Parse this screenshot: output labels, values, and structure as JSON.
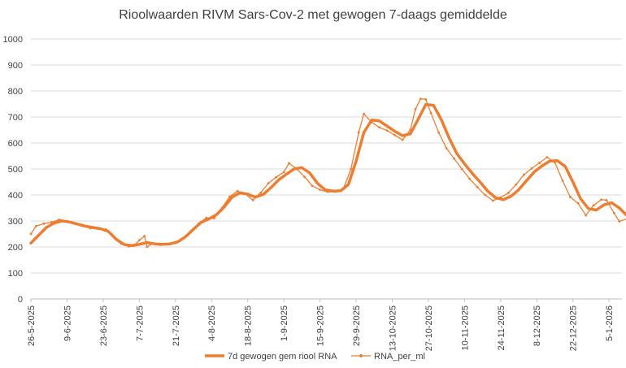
{
  "chart_data": {
    "type": "line",
    "title": "Rioolwaarden RIVM Sars-Cov-2 met gewogen 7-daags gemiddelde",
    "xlabel": "",
    "ylabel": "",
    "x_start": "2025-05-26",
    "x_end": "2026-01-10",
    "ylim": [
      0,
      1000
    ],
    "yticks": [
      0,
      100,
      200,
      300,
      400,
      500,
      600,
      700,
      800,
      900,
      1000
    ],
    "xticks": [
      "26-5-2025",
      "9-6-2025",
      "23-6-2025",
      "7-7-2025",
      "21-7-2025",
      "4-8-2025",
      "18-8-2025",
      "1-9-2025",
      "15-9-2025",
      "29-9-2025",
      "13-10-2025",
      "27-10-2025",
      "10-11-2025",
      "24-11-2025",
      "8-12-2025",
      "22-12-2025",
      "5-1-2026"
    ],
    "grid": "horizontal",
    "legend_position": "bottom",
    "colors": {
      "series": "#ED7D31",
      "grid": "#D9D9D9",
      "axis_text": "#404040"
    },
    "series": [
      {
        "name": "7d gewogen gem riool RNA",
        "style": "thick-line",
        "points": [
          [
            "2025-05-26",
            215
          ],
          [
            "2025-05-29",
            245
          ],
          [
            "2025-06-01",
            275
          ],
          [
            "2025-06-04",
            292
          ],
          [
            "2025-06-07",
            300
          ],
          [
            "2025-06-10",
            296
          ],
          [
            "2025-06-13",
            288
          ],
          [
            "2025-06-16",
            280
          ],
          [
            "2025-06-19",
            275
          ],
          [
            "2025-06-22",
            270
          ],
          [
            "2025-06-25",
            260
          ],
          [
            "2025-06-28",
            230
          ],
          [
            "2025-07-01",
            210
          ],
          [
            "2025-07-04",
            205
          ],
          [
            "2025-07-07",
            210
          ],
          [
            "2025-07-10",
            217
          ],
          [
            "2025-07-13",
            212
          ],
          [
            "2025-07-16",
            210
          ],
          [
            "2025-07-19",
            212
          ],
          [
            "2025-07-22",
            220
          ],
          [
            "2025-07-25",
            240
          ],
          [
            "2025-07-28",
            268
          ],
          [
            "2025-07-31",
            295
          ],
          [
            "2025-08-03",
            308
          ],
          [
            "2025-08-06",
            325
          ],
          [
            "2025-08-09",
            355
          ],
          [
            "2025-08-12",
            392
          ],
          [
            "2025-08-15",
            408
          ],
          [
            "2025-08-18",
            403
          ],
          [
            "2025-08-21",
            392
          ],
          [
            "2025-08-24",
            402
          ],
          [
            "2025-08-27",
            428
          ],
          [
            "2025-08-30",
            458
          ],
          [
            "2025-09-02",
            480
          ],
          [
            "2025-09-05",
            500
          ],
          [
            "2025-09-08",
            505
          ],
          [
            "2025-09-11",
            485
          ],
          [
            "2025-09-14",
            445
          ],
          [
            "2025-09-17",
            420
          ],
          [
            "2025-09-20",
            415
          ],
          [
            "2025-09-23",
            416
          ],
          [
            "2025-09-26",
            440
          ],
          [
            "2025-09-29",
            530
          ],
          [
            "2025-10-02",
            640
          ],
          [
            "2025-10-05",
            688
          ],
          [
            "2025-10-08",
            685
          ],
          [
            "2025-10-11",
            665
          ],
          [
            "2025-10-14",
            645
          ],
          [
            "2025-10-17",
            628
          ],
          [
            "2025-10-20",
            635
          ],
          [
            "2025-10-23",
            690
          ],
          [
            "2025-10-26",
            748
          ],
          [
            "2025-10-29",
            745
          ],
          [
            "2025-11-01",
            690
          ],
          [
            "2025-11-04",
            620
          ],
          [
            "2025-11-07",
            560
          ],
          [
            "2025-11-10",
            520
          ],
          [
            "2025-11-13",
            483
          ],
          [
            "2025-11-16",
            450
          ],
          [
            "2025-11-19",
            415
          ],
          [
            "2025-11-22",
            390
          ],
          [
            "2025-11-25",
            382
          ],
          [
            "2025-11-28",
            395
          ],
          [
            "2025-12-01",
            420
          ],
          [
            "2025-12-04",
            455
          ],
          [
            "2025-12-07",
            488
          ],
          [
            "2025-12-10",
            512
          ],
          [
            "2025-12-13",
            530
          ],
          [
            "2025-12-16",
            532
          ],
          [
            "2025-12-19",
            510
          ],
          [
            "2025-12-22",
            450
          ],
          [
            "2025-12-25",
            385
          ],
          [
            "2025-12-28",
            348
          ],
          [
            "2025-12-31",
            342
          ],
          [
            "2026-01-03",
            362
          ],
          [
            "2026-01-06",
            370
          ],
          [
            "2026-01-09",
            350
          ],
          [
            "2026-01-12",
            320
          ],
          [
            "2026-01-14",
            310
          ]
        ]
      },
      {
        "name": "RNA_per_ml",
        "style": "thin-line-markers",
        "points": [
          [
            "2025-05-26",
            250
          ],
          [
            "2025-05-28",
            280
          ],
          [
            "2025-05-31",
            290
          ],
          [
            "2025-06-03",
            295
          ],
          [
            "2025-06-06",
            305
          ],
          [
            "2025-06-09",
            300
          ],
          [
            "2025-06-12",
            292
          ],
          [
            "2025-06-15",
            285
          ],
          [
            "2025-06-18",
            272
          ],
          [
            "2025-06-21",
            270
          ],
          [
            "2025-06-24",
            268
          ],
          [
            "2025-06-27",
            240
          ],
          [
            "2025-06-30",
            212
          ],
          [
            "2025-07-03",
            202
          ],
          [
            "2025-07-05",
            205
          ],
          [
            "2025-07-07",
            226
          ],
          [
            "2025-07-09",
            242
          ],
          [
            "2025-07-10",
            200
          ],
          [
            "2025-07-12",
            212
          ],
          [
            "2025-07-15",
            208
          ],
          [
            "2025-07-18",
            210
          ],
          [
            "2025-07-21",
            215
          ],
          [
            "2025-07-24",
            232
          ],
          [
            "2025-07-27",
            260
          ],
          [
            "2025-07-30",
            290
          ],
          [
            "2025-08-02",
            312
          ],
          [
            "2025-08-05",
            310
          ],
          [
            "2025-08-08",
            350
          ],
          [
            "2025-08-11",
            393
          ],
          [
            "2025-08-14",
            415
          ],
          [
            "2025-08-17",
            405
          ],
          [
            "2025-08-20",
            380
          ],
          [
            "2025-08-23",
            408
          ],
          [
            "2025-08-26",
            445
          ],
          [
            "2025-08-29",
            468
          ],
          [
            "2025-09-01",
            488
          ],
          [
            "2025-09-03",
            522
          ],
          [
            "2025-09-06",
            500
          ],
          [
            "2025-09-09",
            470
          ],
          [
            "2025-09-12",
            435
          ],
          [
            "2025-09-15",
            420
          ],
          [
            "2025-09-18",
            412
          ],
          [
            "2025-09-21",
            412
          ],
          [
            "2025-09-24",
            422
          ],
          [
            "2025-09-27",
            500
          ],
          [
            "2025-09-30",
            640
          ],
          [
            "2025-10-02",
            712
          ],
          [
            "2025-10-05",
            680
          ],
          [
            "2025-10-08",
            660
          ],
          [
            "2025-10-11",
            648
          ],
          [
            "2025-10-14",
            630
          ],
          [
            "2025-10-17",
            612
          ],
          [
            "2025-10-20",
            650
          ],
          [
            "2025-10-22",
            730
          ],
          [
            "2025-10-24",
            770
          ],
          [
            "2025-10-26",
            768
          ],
          [
            "2025-10-28",
            715
          ],
          [
            "2025-10-31",
            640
          ],
          [
            "2025-11-03",
            580
          ],
          [
            "2025-11-06",
            540
          ],
          [
            "2025-11-09",
            500
          ],
          [
            "2025-11-12",
            462
          ],
          [
            "2025-11-15",
            430
          ],
          [
            "2025-11-18",
            400
          ],
          [
            "2025-11-21",
            378
          ],
          [
            "2025-11-24",
            390
          ],
          [
            "2025-11-27",
            408
          ],
          [
            "2025-11-30",
            440
          ],
          [
            "2025-12-03",
            478
          ],
          [
            "2025-12-06",
            502
          ],
          [
            "2025-12-09",
            523
          ],
          [
            "2025-12-12",
            545
          ],
          [
            "2025-12-15",
            525
          ],
          [
            "2025-12-18",
            455
          ],
          [
            "2025-12-21",
            392
          ],
          [
            "2025-12-24",
            368
          ],
          [
            "2025-12-27",
            322
          ],
          [
            "2025-12-30",
            360
          ],
          [
            "2026-01-02",
            382
          ],
          [
            "2026-01-04",
            380
          ],
          [
            "2026-01-07",
            330
          ],
          [
            "2026-01-09",
            298
          ],
          [
            "2026-01-12",
            308
          ],
          [
            "2026-01-14",
            312
          ]
        ]
      }
    ]
  }
}
